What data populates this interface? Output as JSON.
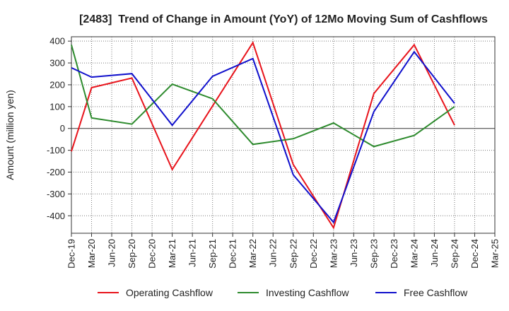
{
  "chart_data": {
    "type": "line",
    "title": "[2483]  Trend of Change in Amount (YoY) of 12Mo Moving Sum of Cashflows",
    "xlabel": "",
    "ylabel": "Amount (million yen)",
    "x_ticks": [
      "Dec-19",
      "Mar-20",
      "Jun-20",
      "Sep-20",
      "Dec-20",
      "Mar-21",
      "Jun-21",
      "Sep-21",
      "Dec-21",
      "Mar-22",
      "Jun-22",
      "Sep-22",
      "Dec-22",
      "Mar-23",
      "Jun-23",
      "Sep-23",
      "Dec-23",
      "Mar-24",
      "Jun-24",
      "Sep-24",
      "Dec-24",
      "Mar-25"
    ],
    "y_ticks": [
      400,
      300,
      200,
      100,
      0,
      -100,
      -200,
      -300,
      -400
    ],
    "ylim": [
      -480,
      420
    ],
    "grid": true,
    "legend": "bottom",
    "series": [
      {
        "name": "Operating Cashflow",
        "color": "#e8141c",
        "values": [
          -105,
          187,
          null,
          231,
          null,
          -188,
          null,
          103,
          null,
          393,
          null,
          -165,
          null,
          -455,
          null,
          160,
          null,
          383,
          null,
          15,
          null,
          null
        ]
      },
      {
        "name": "Investing Cashflow",
        "color": "#2e8b2e",
        "values": [
          383,
          48,
          null,
          20,
          null,
          203,
          null,
          136,
          null,
          -73,
          null,
          -47,
          null,
          25,
          null,
          -83,
          null,
          -32,
          null,
          100,
          null,
          null
        ]
      },
      {
        "name": "Free Cashflow",
        "color": "#1010cc",
        "values": [
          278,
          235,
          null,
          251,
          null,
          15,
          null,
          239,
          null,
          320,
          null,
          -212,
          null,
          -430,
          null,
          77,
          null,
          351,
          null,
          115,
          null,
          null
        ]
      }
    ]
  }
}
